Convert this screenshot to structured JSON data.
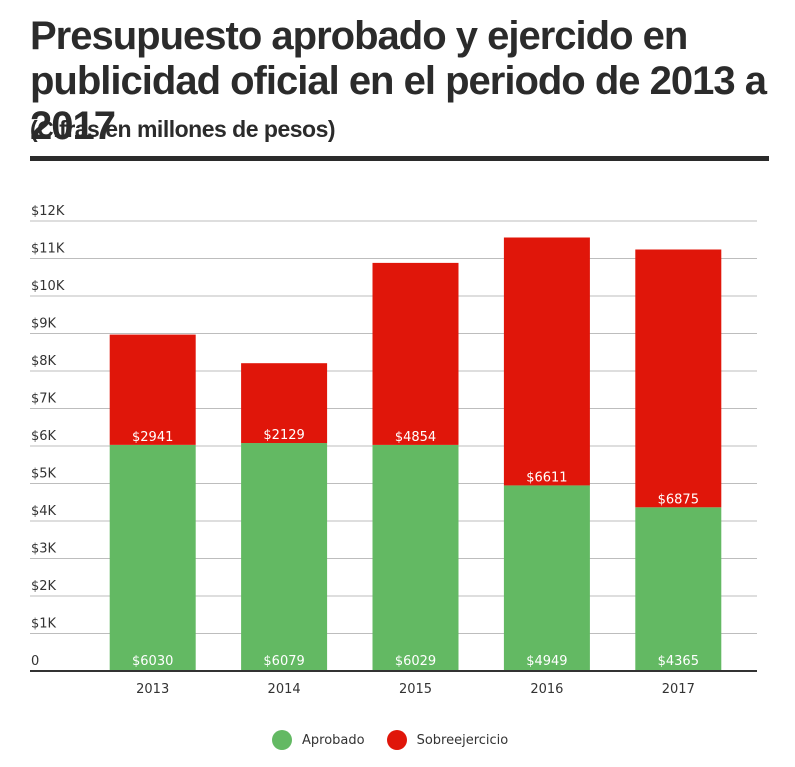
{
  "title": "Presupuesto aprobado y ejercido en publicidad oficial en el periodo de 2013 a 2017",
  "subtitle": "(Cifras en millones de pesos)",
  "colors": {
    "aprobado": "#63b963",
    "sobreejercicio": "#e0160a",
    "grid": "#bdbdbd",
    "axis": "#333333",
    "text": "#2b2b2b"
  },
  "chart_data": {
    "type": "bar",
    "stacked": true,
    "categories": [
      "2013",
      "2014",
      "2015",
      "2016",
      "2017"
    ],
    "series": [
      {
        "name": "Aprobado",
        "values": [
          6030,
          6079,
          6029,
          4949,
          4365
        ],
        "labels": [
          "$6030",
          "$6079",
          "$6029",
          "$4949",
          "$4365"
        ]
      },
      {
        "name": "Sobreejercicio",
        "values": [
          2941,
          2129,
          4854,
          6611,
          6875
        ],
        "labels": [
          "$2941",
          "$2129",
          "$4854",
          "$6611",
          "$6875"
        ]
      }
    ],
    "ylim": [
      0,
      12000
    ],
    "yticks": [
      0,
      1000,
      2000,
      3000,
      4000,
      5000,
      6000,
      7000,
      8000,
      9000,
      10000,
      11000,
      12000
    ],
    "yticklabels": [
      "0",
      "$1K",
      "$2K",
      "$3K",
      "$4K",
      "$5K",
      "$6K",
      "$7K",
      "$8K",
      "$9K",
      "$10K",
      "$11K",
      "$12K"
    ],
    "grid": true,
    "legend": "bottom"
  },
  "legend": [
    {
      "label": "Aprobado",
      "color": "#63b963"
    },
    {
      "label": "Sobreejercicio",
      "color": "#e0160a"
    }
  ]
}
